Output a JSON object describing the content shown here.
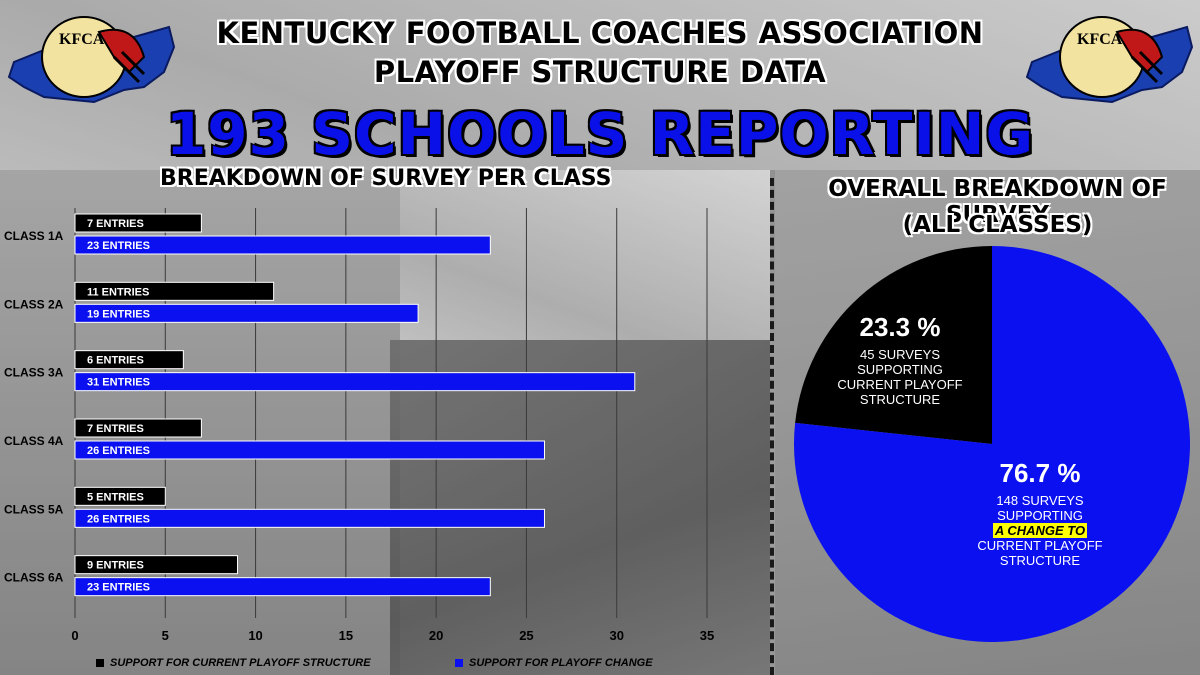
{
  "header": {
    "title_line1": "KENTUCKY FOOTBALL COACHES ASSOCIATION",
    "title_line2": "PLAYOFF STRUCTURE DATA",
    "headline": "193 SCHOOLS REPORTING"
  },
  "logo": {
    "text": "KFCA"
  },
  "colors": {
    "current": "#000000",
    "change": "#0a10f0",
    "accent_text": "#0a10e8",
    "highlight": "#ffff00"
  },
  "chart_data": [
    {
      "type": "bar",
      "orientation": "horizontal",
      "title": "BREAKDOWN OF SURVEY PER CLASS",
      "categories": [
        "CLASS 1A",
        "CLASS 2A",
        "CLASS 3A",
        "CLASS 4A",
        "CLASS 5A",
        "CLASS 6A"
      ],
      "series": [
        {
          "name": "SUPPORT FOR CURRENT PLAYOFF STRUCTURE",
          "color": "#000000",
          "values": [
            7,
            11,
            6,
            7,
            5,
            9
          ],
          "labels": [
            "7 ENTRIES",
            "11 ENTRIES",
            "6 ENTRIES",
            "7 ENTRIES",
            "5 ENTRIES",
            "9 ENTRIES"
          ]
        },
        {
          "name": "SUPPORT FOR PLAYOFF CHANGE",
          "color": "#0a10f0",
          "values": [
            23,
            19,
            31,
            26,
            26,
            23
          ],
          "labels": [
            "23 ENTRIES",
            "19 ENTRIES",
            "31 ENTRIES",
            "26 ENTRIES",
            "26 ENTRIES",
            "23 ENTRIES"
          ]
        }
      ],
      "x_ticks": [
        0,
        5,
        10,
        15,
        20,
        25,
        30,
        35
      ],
      "xlim": [
        0,
        35
      ],
      "grid": true,
      "legend": "bottom"
    },
    {
      "type": "pie",
      "title": [
        "OVERALL BREAKDOWN OF SURVEY",
        "(ALL CLASSES)"
      ],
      "slices": [
        {
          "label": "23.3 %",
          "value": 23.3,
          "count_text": "45 SURVEYS",
          "desc": [
            "SUPPORTING",
            "CURRENT PLAYOFF",
            "STRUCTURE"
          ],
          "color": "#000000"
        },
        {
          "label": "76.7 %",
          "value": 76.7,
          "count_text": "148 SURVEYS",
          "desc_pre": "SUPPORTING",
          "highlight": "A CHANGE TO",
          "desc_post": [
            "CURRENT PLAYOFF",
            "STRUCTURE"
          ],
          "color": "#0a10f0"
        }
      ]
    }
  ]
}
